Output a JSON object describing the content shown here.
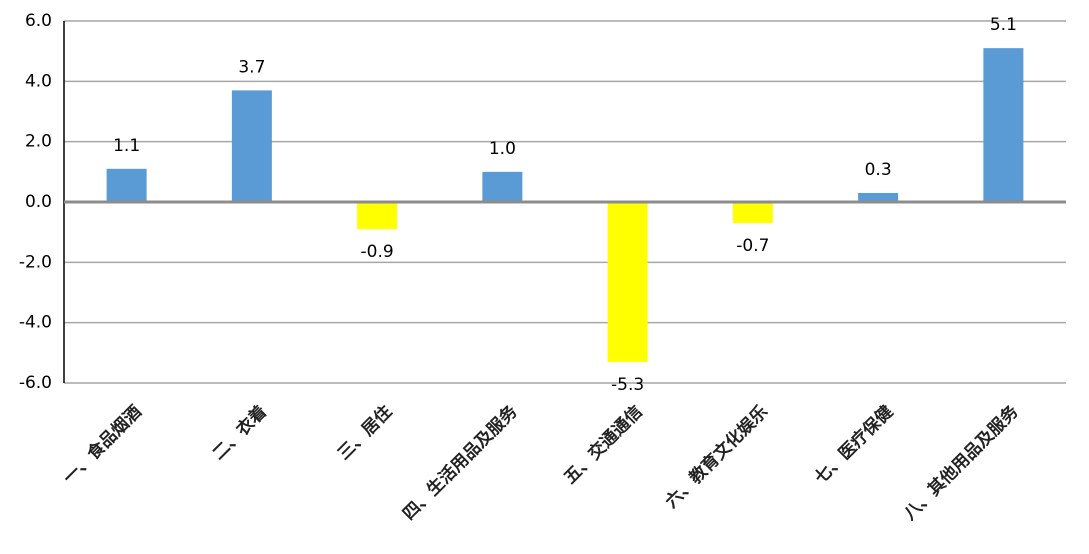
{
  "chart_data": {
    "type": "bar",
    "categories": [
      "一、食品烟酒",
      "二、衣着",
      "三、居住",
      "四、生活用品及服务",
      "五、交通通信",
      "六、教育文化娱乐",
      "七、医疗保健",
      "八、其他用品及服务"
    ],
    "values": [
      1.1,
      3.7,
      -0.9,
      1.0,
      -5.3,
      -0.7,
      0.3,
      5.1
    ],
    "value_labels": [
      "1.1",
      "3.7",
      "-0.9",
      "1.0",
      "-5.3",
      "-0.7",
      "0.3",
      "5.1"
    ],
    "colors": [
      "#5b9bd5",
      "#5b9bd5",
      "#ffff00",
      "#5b9bd5",
      "#ffff00",
      "#ffff00",
      "#5b9bd5",
      "#5b9bd5"
    ],
    "ylim": [
      -6,
      6
    ],
    "yticks": [
      {
        "value": -6,
        "label": "-6.0"
      },
      {
        "value": -4,
        "label": "-4.0"
      },
      {
        "value": -2,
        "label": "-2.0"
      },
      {
        "value": 0,
        "label": "0.0"
      },
      {
        "value": 2,
        "label": "2.0"
      },
      {
        "value": 4,
        "label": "4.0"
      },
      {
        "value": 6,
        "label": "6.0"
      }
    ],
    "grid": true
  }
}
